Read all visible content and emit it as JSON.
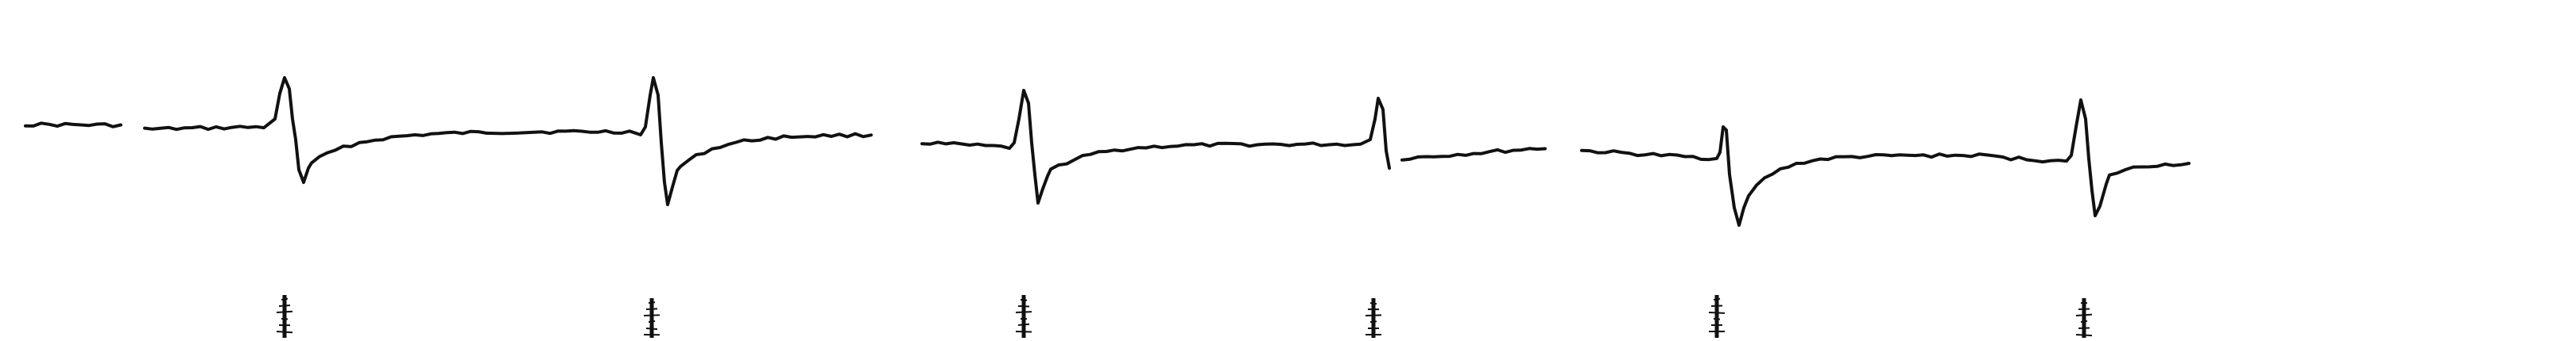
{
  "figure": {
    "kind": "biphasic-waveform-trace-with-marker-ticks",
    "background_color": "#ffffff",
    "trace_color": "#111111",
    "segment_count": 6,
    "marker_count": 6,
    "text_labels": []
  }
}
